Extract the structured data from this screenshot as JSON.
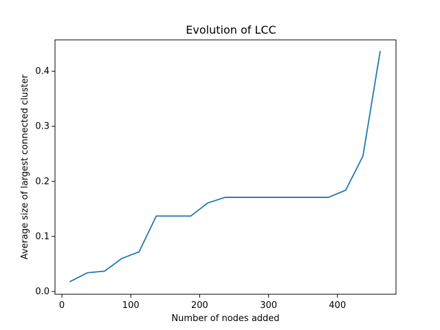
{
  "chart_data": {
    "type": "line",
    "title": "Evolution of LCC",
    "xlabel": "Number of nodes added",
    "ylabel": "Average size of largest connected cluster",
    "xlim": [
      -10,
      485
    ],
    "ylim": [
      -0.005,
      0.457
    ],
    "x_ticks": [
      0,
      100,
      200,
      300,
      400
    ],
    "y_ticks": [
      0.0,
      0.1,
      0.2,
      0.3,
      0.4
    ],
    "x_tick_labels": [
      "0",
      "100",
      "200",
      "300",
      "400"
    ],
    "y_tick_labels": [
      "0.0",
      "0.1",
      "0.2",
      "0.3",
      "0.4"
    ],
    "grid": false,
    "series": [
      {
        "color": "#1f77b4",
        "x": [
          12,
          37,
          62,
          87,
          112,
          137,
          162,
          187,
          212,
          237,
          262,
          287,
          312,
          337,
          362,
          387,
          412,
          437,
          462
        ],
        "y": [
          0.018,
          0.034,
          0.037,
          0.06,
          0.072,
          0.137,
          0.137,
          0.137,
          0.161,
          0.171,
          0.171,
          0.171,
          0.171,
          0.171,
          0.171,
          0.171,
          0.184,
          0.246,
          0.436
        ]
      }
    ]
  }
}
